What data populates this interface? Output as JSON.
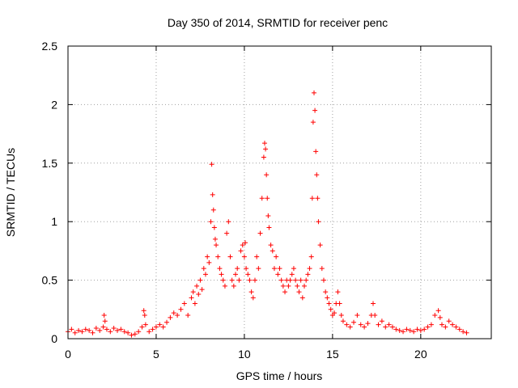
{
  "chart_data": {
    "type": "scatter",
    "title": "Day 350 of 2014, SRMTID for receiver penc",
    "xlabel": "GPS time / hours",
    "ylabel": "SRMTID / TECUs",
    "xlim": [
      0,
      24
    ],
    "ylim": [
      0,
      2.5
    ],
    "xticks": [
      0,
      5,
      10,
      15,
      20
    ],
    "xtick_labels": [
      "0",
      "5",
      "10",
      "15",
      "20"
    ],
    "yticks": [
      0,
      0.5,
      1,
      1.5,
      2,
      2.5
    ],
    "ytick_labels": [
      "0",
      "0.5",
      "1",
      "1.5",
      "2",
      "2.5"
    ],
    "grid": true,
    "marker": "+",
    "color": "#ff0000",
    "series": [
      {
        "name": "penc",
        "x": [
          0.0,
          0.2,
          0.4,
          0.6,
          0.8,
          1.0,
          1.2,
          1.4,
          1.6,
          1.8,
          2.0,
          2.05,
          2.1,
          2.2,
          2.4,
          2.6,
          2.8,
          3.0,
          3.2,
          3.4,
          3.6,
          3.8,
          4.0,
          4.2,
          4.3,
          4.35,
          4.4,
          4.6,
          4.8,
          5.0,
          5.2,
          5.4,
          5.6,
          5.8,
          6.0,
          6.2,
          6.4,
          6.6,
          6.8,
          7.0,
          7.1,
          7.2,
          7.3,
          7.4,
          7.5,
          7.6,
          7.7,
          7.8,
          7.9,
          8.0,
          8.1,
          8.15,
          8.2,
          8.25,
          8.3,
          8.35,
          8.4,
          8.5,
          8.6,
          8.7,
          8.8,
          8.9,
          9.0,
          9.1,
          9.2,
          9.3,
          9.4,
          9.5,
          9.6,
          9.7,
          9.8,
          9.9,
          10.0,
          10.05,
          10.1,
          10.2,
          10.3,
          10.4,
          10.5,
          10.6,
          10.7,
          10.8,
          10.9,
          11.0,
          11.1,
          11.15,
          11.2,
          11.25,
          11.3,
          11.35,
          11.4,
          11.5,
          11.6,
          11.7,
          11.8,
          11.9,
          12.0,
          12.1,
          12.2,
          12.3,
          12.4,
          12.5,
          12.6,
          12.7,
          12.8,
          12.9,
          13.0,
          13.1,
          13.2,
          13.3,
          13.4,
          13.5,
          13.6,
          13.7,
          13.8,
          13.85,
          13.9,
          13.95,
          14.0,
          14.05,
          14.1,
          14.15,
          14.2,
          14.3,
          14.4,
          14.5,
          14.6,
          14.7,
          14.8,
          14.9,
          15.0,
          15.1,
          15.2,
          15.3,
          15.4,
          15.5,
          15.6,
          15.8,
          16.0,
          16.2,
          16.4,
          16.6,
          16.8,
          17.0,
          17.2,
          17.3,
          17.4,
          17.6,
          17.8,
          18.0,
          18.2,
          18.4,
          18.6,
          18.8,
          19.0,
          19.2,
          19.4,
          19.6,
          19.8,
          20.0,
          20.2,
          20.4,
          20.6,
          20.8,
          21.0,
          21.1,
          21.2,
          21.4,
          21.6,
          21.8,
          22.0,
          22.2,
          22.4,
          22.6
        ],
        "y": [
          0.06,
          0.08,
          0.05,
          0.07,
          0.06,
          0.08,
          0.07,
          0.05,
          0.09,
          0.07,
          0.1,
          0.2,
          0.15,
          0.08,
          0.06,
          0.09,
          0.07,
          0.08,
          0.06,
          0.05,
          0.03,
          0.04,
          0.06,
          0.1,
          0.24,
          0.2,
          0.12,
          0.06,
          0.08,
          0.1,
          0.12,
          0.1,
          0.14,
          0.18,
          0.22,
          0.2,
          0.25,
          0.3,
          0.2,
          0.35,
          0.4,
          0.3,
          0.45,
          0.38,
          0.5,
          0.42,
          0.6,
          0.55,
          0.7,
          0.65,
          1.0,
          1.49,
          1.23,
          1.1,
          0.95,
          0.85,
          0.8,
          0.7,
          0.6,
          0.55,
          0.5,
          0.45,
          0.9,
          1.0,
          0.7,
          0.5,
          0.45,
          0.55,
          0.6,
          0.5,
          0.75,
          0.8,
          0.7,
          0.82,
          0.6,
          0.55,
          0.5,
          0.4,
          0.35,
          0.5,
          0.7,
          0.6,
          0.9,
          1.2,
          1.55,
          1.67,
          1.62,
          1.4,
          1.2,
          1.05,
          0.95,
          0.8,
          0.75,
          0.6,
          0.7,
          0.55,
          0.6,
          0.5,
          0.45,
          0.4,
          0.5,
          0.45,
          0.5,
          0.55,
          0.6,
          0.5,
          0.45,
          0.4,
          0.5,
          0.35,
          0.45,
          0.5,
          0.55,
          0.6,
          0.7,
          1.2,
          1.85,
          2.1,
          1.95,
          1.6,
          1.4,
          1.2,
          1.0,
          0.8,
          0.6,
          0.5,
          0.4,
          0.35,
          0.3,
          0.25,
          0.2,
          0.22,
          0.3,
          0.4,
          0.3,
          0.2,
          0.15,
          0.12,
          0.1,
          0.14,
          0.2,
          0.12,
          0.1,
          0.13,
          0.2,
          0.3,
          0.2,
          0.12,
          0.15,
          0.1,
          0.12,
          0.1,
          0.08,
          0.07,
          0.06,
          0.08,
          0.07,
          0.06,
          0.08,
          0.07,
          0.08,
          0.1,
          0.12,
          0.2,
          0.24,
          0.18,
          0.12,
          0.1,
          0.15,
          0.12,
          0.1,
          0.08,
          0.06,
          0.05
        ]
      }
    ]
  }
}
